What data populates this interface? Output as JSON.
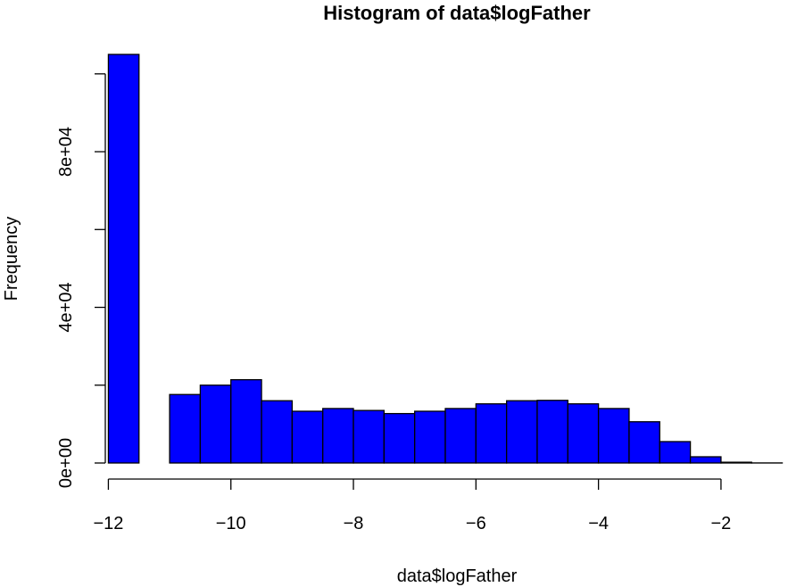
{
  "chart_data": {
    "type": "bar",
    "title": "Histogram of data$logFather",
    "xlabel": "data$logFather",
    "ylabel": "Frequency",
    "bar_color": "#0000FF",
    "bar_stroke": "#000000",
    "xlim": [
      -12.05,
      -0.95
    ],
    "ylim": [
      0,
      105000
    ],
    "x_ticks": [
      -12,
      -10,
      -8,
      -6,
      -4,
      -2
    ],
    "x_tick_labels": [
      "−12",
      "−10",
      "−8",
      "−6",
      "−4",
      "−2"
    ],
    "y_ticks": [
      0,
      20000,
      40000,
      60000,
      80000,
      100000
    ],
    "y_tick_labels": [
      "0e+00",
      "",
      "4e+04",
      "",
      "8e+04",
      ""
    ],
    "bins": [
      {
        "x0": -12.0,
        "x1": -11.5,
        "count": 105000
      },
      {
        "x0": -11.5,
        "x1": -11.0,
        "count": 0
      },
      {
        "x0": -11.0,
        "x1": -10.5,
        "count": 17600
      },
      {
        "x0": -10.5,
        "x1": -10.0,
        "count": 20000
      },
      {
        "x0": -10.0,
        "x1": -9.5,
        "count": 21400
      },
      {
        "x0": -9.5,
        "x1": -9.0,
        "count": 16000
      },
      {
        "x0": -9.0,
        "x1": -8.5,
        "count": 13300
      },
      {
        "x0": -8.5,
        "x1": -8.0,
        "count": 14000
      },
      {
        "x0": -8.0,
        "x1": -7.5,
        "count": 13500
      },
      {
        "x0": -7.5,
        "x1": -7.0,
        "count": 12700
      },
      {
        "x0": -7.0,
        "x1": -6.5,
        "count": 13300
      },
      {
        "x0": -6.5,
        "x1": -6.0,
        "count": 14000
      },
      {
        "x0": -6.0,
        "x1": -5.5,
        "count": 15200
      },
      {
        "x0": -5.5,
        "x1": -5.0,
        "count": 16000
      },
      {
        "x0": -5.0,
        "x1": -4.5,
        "count": 16100
      },
      {
        "x0": -4.5,
        "x1": -4.0,
        "count": 15200
      },
      {
        "x0": -4.0,
        "x1": -3.5,
        "count": 14000
      },
      {
        "x0": -3.5,
        "x1": -3.0,
        "count": 10600
      },
      {
        "x0": -3.0,
        "x1": -2.5,
        "count": 5500
      },
      {
        "x0": -2.5,
        "x1": -2.0,
        "count": 1600
      },
      {
        "x0": -2.0,
        "x1": -1.5,
        "count": 200
      },
      {
        "x0": -1.5,
        "x1": -1.0,
        "count": 20
      }
    ]
  }
}
